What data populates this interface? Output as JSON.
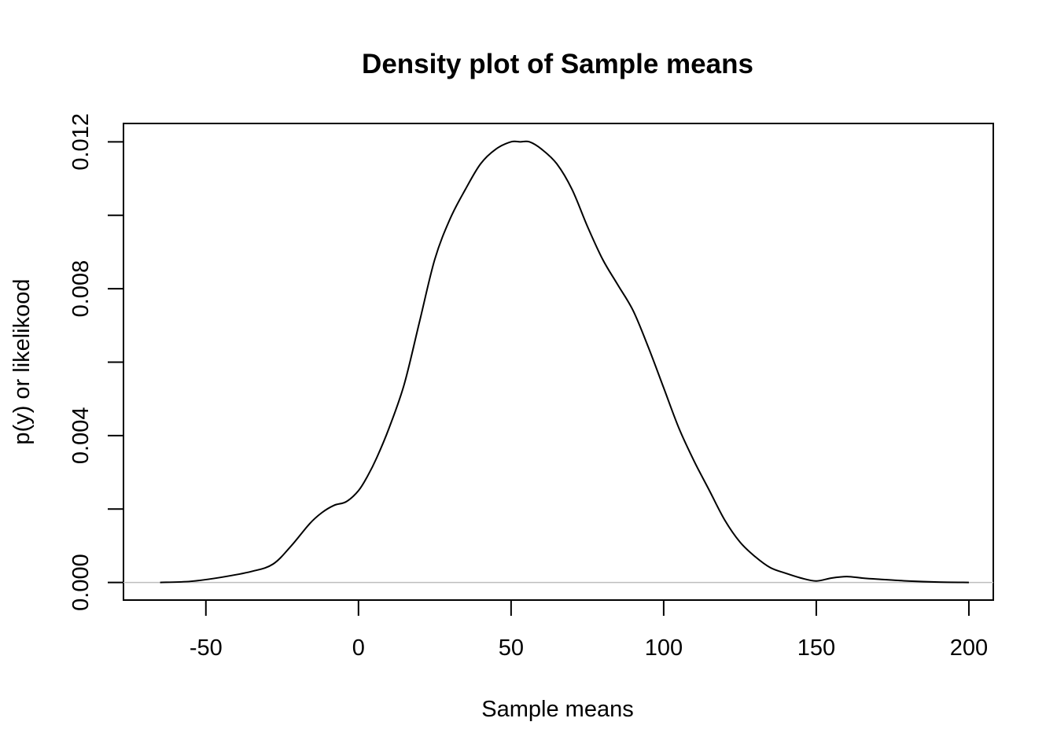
{
  "chart_data": {
    "type": "line",
    "title": "Density plot of Sample means",
    "xlabel": "Sample means",
    "ylabel": "p(y) or likelikood",
    "xlim": [
      -77,
      208
    ],
    "ylim": [
      -0.00048,
      0.0125
    ],
    "x_ticks": [
      -50,
      0,
      50,
      100,
      150,
      200
    ],
    "x_tick_labels": [
      "-50",
      "0",
      "50",
      "100",
      "150",
      "200"
    ],
    "y_ticks": [
      0,
      0.002,
      0.004,
      0.006,
      0.008,
      0.01,
      0.012
    ],
    "y_tick_labels": [
      "0.000",
      "",
      "0.004",
      "",
      "0.008",
      "",
      "0.012"
    ],
    "reference_line": {
      "y": 0,
      "color": "#bebebe"
    },
    "line_color": "#000000",
    "grid": false,
    "series": [
      {
        "x": [
          -65,
          -55,
          -45,
          -35,
          -28,
          -22,
          -16,
          -12,
          -8,
          -4,
          0,
          3,
          6,
          10,
          15,
          20,
          25,
          30,
          35,
          40,
          45,
          50,
          53,
          56,
          60,
          65,
          70,
          75,
          80,
          85,
          90,
          95,
          100,
          105,
          110,
          115,
          120,
          125,
          130,
          135,
          140,
          145,
          150,
          155,
          160,
          165,
          170,
          180,
          190,
          200
        ],
        "y": [
          0.0,
          3e-05,
          0.00014,
          0.0003,
          0.0005,
          0.001,
          0.0016,
          0.0019,
          0.0021,
          0.0022,
          0.0025,
          0.0029,
          0.0034,
          0.0042,
          0.0054,
          0.0071,
          0.0088,
          0.0099,
          0.0107,
          0.0114,
          0.0118,
          0.012,
          0.012,
          0.012,
          0.0118,
          0.0114,
          0.0107,
          0.0097,
          0.0088,
          0.0081,
          0.0074,
          0.0064,
          0.0053,
          0.0042,
          0.0033,
          0.0025,
          0.0017,
          0.0011,
          0.0007,
          0.0004,
          0.00025,
          0.00012,
          4e-05,
          0.00012,
          0.00016,
          0.00012,
          9e-05,
          4e-05,
          1e-05,
          0.0
        ]
      }
    ]
  }
}
